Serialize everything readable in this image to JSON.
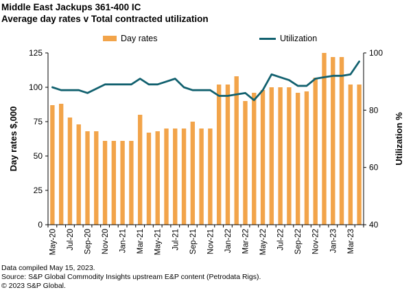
{
  "header": {
    "title": "Middle East Jackups 361-400 IC",
    "subtitle": "Average day rates v Total contracted utilization"
  },
  "footer": {
    "line1": "Data compiled May 15, 2023.",
    "line2": "Source: S&P Global Commodity Insights upstream E&P content (Petrodata Rigs).",
    "line3": "© 2023 S&P Global."
  },
  "chart_data": {
    "type": "bar",
    "title": "Middle East Jackups 361-400 IC",
    "subtitle": "Average day rates v Total contracted utilization",
    "ylabel": "Day rates $,000",
    "y2label": "Utilization %",
    "ylim": [
      0,
      125
    ],
    "y2lim": [
      40,
      100
    ],
    "yticks": [
      "0",
      "25",
      "50",
      "75",
      "100",
      "125"
    ],
    "y2ticks": [
      "40",
      "60",
      "80",
      "100"
    ],
    "x": [
      "May-20",
      "Jun-20",
      "Jul-20",
      "Aug-20",
      "Sep-20",
      "Oct-20",
      "Nov-20",
      "Dec-20",
      "Jan-21",
      "Feb-21",
      "Mar-21",
      "Apr-21",
      "May-21",
      "Jun-21",
      "Jul-21",
      "Aug-21",
      "Sep-21",
      "Oct-21",
      "Nov-21",
      "Dec-21",
      "Jan-22",
      "Feb-22",
      "Mar-22",
      "Apr-22",
      "May-22",
      "Jun-22",
      "Jul-22",
      "Aug-22",
      "Sep-22",
      "Oct-22",
      "Nov-22",
      "Dec-22",
      "Jan-23",
      "Feb-23",
      "Mar-23",
      "Apr-23"
    ],
    "xtick_labels": [
      "May-20",
      "Jul-20",
      "Sep-20",
      "Nov-20",
      "Jan-21",
      "Mar-21",
      "May-21",
      "Jul-21",
      "Sep-21",
      "Nov-21",
      "Jan-22",
      "Mar-22",
      "May-22",
      "Jul-22",
      "Sep-22",
      "Nov-22",
      "Jan-23",
      "Mar-23"
    ],
    "legend_position": "top",
    "grid": false,
    "colors": {
      "bars": "#f2a44a",
      "line": "#12616f"
    },
    "series": [
      {
        "name": "Day rates",
        "type": "bar",
        "axis": "left",
        "values": [
          87,
          88,
          78,
          73,
          68,
          68,
          61,
          61,
          61,
          61,
          80,
          67,
          68,
          70,
          70,
          70,
          75,
          70,
          70,
          102,
          102,
          108,
          90,
          96,
          98,
          100,
          100,
          100,
          96,
          97,
          107,
          125,
          122,
          122,
          102,
          102
        ]
      },
      {
        "name": "Utilization",
        "type": "line",
        "axis": "right",
        "values": [
          88,
          87,
          87,
          87,
          86,
          87.5,
          89,
          89,
          89,
          89,
          91,
          89,
          89,
          90,
          91,
          88,
          87,
          87,
          87,
          85,
          85,
          85.5,
          86,
          83.5,
          87,
          92.5,
          91.5,
          90.5,
          88.5,
          88.5,
          91,
          91.5,
          92,
          92,
          92.5,
          97
        ]
      }
    ]
  }
}
